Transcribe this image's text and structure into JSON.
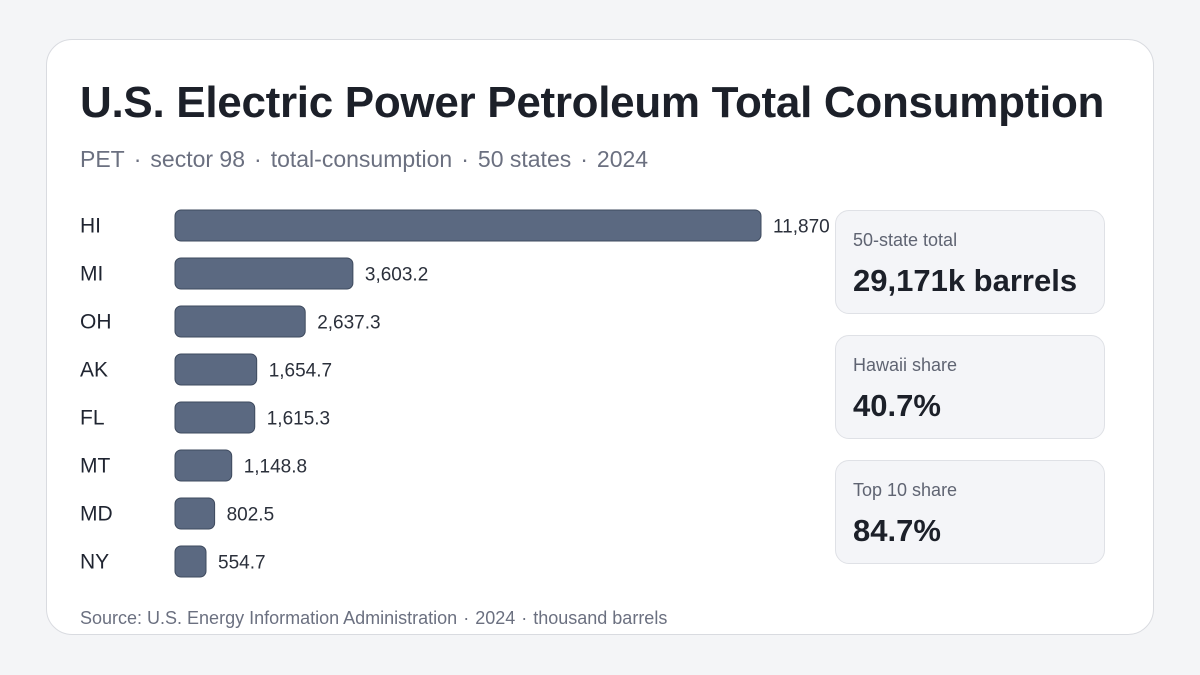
{
  "header": {
    "title": "U.S. Electric Power Petroleum Total Consumption",
    "subtitle_parts": [
      "PET",
      "sector 98",
      "total-consumption",
      "50 states",
      "2024"
    ]
  },
  "stats": [
    {
      "label": "50-state total",
      "value": "29,171k barrels"
    },
    {
      "label": "Hawaii share",
      "value": "40.7%"
    },
    {
      "label": "Top 10 share",
      "value": "84.7%"
    }
  ],
  "footer": {
    "source_parts": [
      "Source: U.S. Energy Information Administration",
      "2024",
      "thousand barrels"
    ]
  },
  "colors": {
    "bar": "#5b6981",
    "bar_stroke": "#3e4a5e"
  },
  "chart_data": {
    "type": "bar",
    "orientation": "horizontal",
    "categories": [
      "HI",
      "MI",
      "OH",
      "AK",
      "FL",
      "MT",
      "MD",
      "NY"
    ],
    "values": [
      11870,
      3603.2,
      2637.3,
      1654.7,
      1615.3,
      1148.8,
      802.5,
      554.7
    ],
    "value_labels": [
      "11,870",
      "3,603.2",
      "2,637.3",
      "1,654.7",
      "1,615.3",
      "1,148.8",
      "802.5",
      "554.7"
    ],
    "xlim": [
      0,
      11870
    ],
    "grid": false,
    "legend": "none"
  }
}
